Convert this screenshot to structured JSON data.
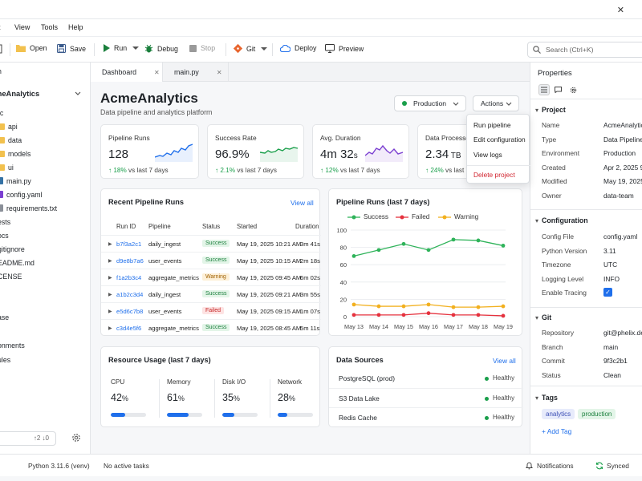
{
  "menu": {
    "items": [
      "t",
      "View",
      "Tools",
      "Help"
    ]
  },
  "window": {
    "close_glyph": "✕"
  },
  "toolbar": {
    "open_label": "Open",
    "save_label": "Save",
    "run_label": "Run",
    "debug_label": "Debug",
    "stop_label": "Stop",
    "git_label": "Git",
    "deploy_label": "Deploy",
    "preview_label": "Preview",
    "search_placeholder": "Search (Ctrl+K)"
  },
  "sidebar": {
    "header": "n",
    "project": "meAnalytics",
    "items": [
      {
        "label": "rc",
        "icon": "none"
      },
      {
        "label": "api",
        "icon": "folder"
      },
      {
        "label": "data",
        "icon": "folder"
      },
      {
        "label": "models",
        "icon": "folder"
      },
      {
        "label": "ui",
        "icon": "folder"
      },
      {
        "label": "main.py",
        "icon": "python"
      },
      {
        "label": "config.yaml",
        "icon": "yaml"
      },
      {
        "label": "requirements.txt",
        "icon": "text"
      },
      {
        "label": "ests",
        "icon": "none"
      },
      {
        "label": "ocs",
        "icon": "none"
      },
      {
        "label": "gitignore",
        "icon": "none"
      },
      {
        "label": "EADME.md",
        "icon": "none"
      },
      {
        "label": "CENSE",
        "icon": "none"
      }
    ],
    "section_items": [
      "ase",
      "onments",
      "ules"
    ],
    "git_status": "↑2 ↓0"
  },
  "tabs": [
    {
      "label": "Dashboard",
      "icon": "home-icon",
      "active": true
    },
    {
      "label": "main.py",
      "icon": "python-icon",
      "active": false
    }
  ],
  "page": {
    "title": "AcmeAnalytics",
    "subtitle": "Data pipeline and analytics platform"
  },
  "env_select": {
    "value": "Production",
    "status_color": "#1a9f4b"
  },
  "actions": {
    "label": "Actions"
  },
  "dropdown": {
    "items": [
      "Run pipeline",
      "Edit configuration",
      "View logs"
    ],
    "danger_item": "Delete project"
  },
  "kpis": [
    {
      "label": "Pipeline Runs",
      "value": "128",
      "unit": "",
      "delta": "↑ 18%",
      "delta_text": "vs last 7 days",
      "color": "#1f6feb"
    },
    {
      "label": "Success Rate",
      "value": "96.9%",
      "unit": "",
      "delta": "↑ 2.1%",
      "delta_text": "vs last 7 days",
      "color": "#1a9f4b"
    },
    {
      "label": "Avg. Duration",
      "value": "4m 32",
      "unit": "s",
      "delta": "↑ 12%",
      "delta_text": "vs last 7 days",
      "color": "#7b3fd1"
    },
    {
      "label": "Data Processed",
      "value": "2.34",
      "unit": " TB",
      "delta": "↑ 24%",
      "delta_text": "vs last 7",
      "color": "#1f6feb"
    }
  ],
  "runs": {
    "title": "Recent Pipeline Runs",
    "view_all": "View all",
    "columns": [
      "Run ID",
      "Pipeline",
      "Status",
      "Started",
      "Duration"
    ],
    "rows": [
      {
        "id": "b7f3a2c1",
        "pipeline": "daily_ingest",
        "status": "Success",
        "started": "May 19, 2025 10:21 AM",
        "duration": "3m 41s"
      },
      {
        "id": "d9e8b7a6",
        "pipeline": "user_events",
        "status": "Success",
        "started": "May 19, 2025 10:15 AM",
        "duration": "2m 18s"
      },
      {
        "id": "f1a2b3c4",
        "pipeline": "aggregate_metrics",
        "status": "Warning",
        "started": "May 19, 2025 09:45 AM",
        "duration": "6m 02s"
      },
      {
        "id": "a1b2c3d4",
        "pipeline": "daily_ingest",
        "status": "Success",
        "started": "May 19, 2025 09:21 AM",
        "duration": "3m 55s"
      },
      {
        "id": "e5d6c7b8",
        "pipeline": "user_events",
        "status": "Failed",
        "started": "May 19, 2025 09:15 AM",
        "duration": "1m 07s"
      },
      {
        "id": "c3d4e5f6",
        "pipeline": "aggregate_metrics",
        "status": "Success",
        "started": "May 19, 2025 08:45 AM",
        "duration": "5m 11s"
      }
    ]
  },
  "chart_data": {
    "type": "line",
    "title": "Pipeline Runs (last 7 days)",
    "categories": [
      "May 13",
      "May 14",
      "May 15",
      "May 16",
      "May 17",
      "May 18",
      "May 19"
    ],
    "ylim": [
      0,
      100
    ],
    "yticks": [
      0,
      20,
      40,
      60,
      80,
      100
    ],
    "grid": true,
    "legend": "top",
    "series": [
      {
        "name": "Success",
        "color": "#2fb35a",
        "values": [
          70,
          77,
          84,
          77,
          89,
          88,
          82
        ]
      },
      {
        "name": "Failed",
        "color": "#e5323e",
        "values": [
          2,
          2,
          2,
          4,
          2,
          2,
          1
        ]
      },
      {
        "name": "Warning",
        "color": "#f2b01e",
        "values": [
          14,
          12,
          12,
          14,
          11,
          11,
          12
        ]
      }
    ]
  },
  "resource": {
    "title": "Resource Usage (last 7 days)",
    "items": [
      {
        "label": "CPU",
        "value": "42",
        "unit": "%",
        "fraction": 0.42
      },
      {
        "label": "Memory",
        "value": "61",
        "unit": "%",
        "fraction": 0.61
      },
      {
        "label": "Disk I/O",
        "value": "35",
        "unit": "%",
        "fraction": 0.35
      },
      {
        "label": "Network",
        "value": "28",
        "unit": "%",
        "fraction": 0.28
      }
    ]
  },
  "sources": {
    "title": "Data Sources",
    "view_all": "View all",
    "rows": [
      {
        "name": "PostgreSQL (prod)",
        "status": "Healthy"
      },
      {
        "name": "S3 Data Lake",
        "status": "Healthy"
      },
      {
        "name": "Redis Cache",
        "status": "Healthy"
      }
    ]
  },
  "properties": {
    "header": "Properties",
    "project_title": "Project",
    "project": [
      {
        "k": "Name",
        "v": "AcmeAnalytics"
      },
      {
        "k": "Type",
        "v": "Data Pipeline"
      },
      {
        "k": "Environment",
        "v": "Production"
      },
      {
        "k": "Created",
        "v": "Apr 2, 2025 9"
      },
      {
        "k": "Modified",
        "v": "May 19, 2025 1"
      },
      {
        "k": "Owner",
        "v": "data-team"
      }
    ],
    "config_title": "Configuration",
    "config": [
      {
        "k": "Config File",
        "v": "config.yaml"
      },
      {
        "k": "Python Version",
        "v": "3.11"
      },
      {
        "k": "Timezone",
        "v": "UTC"
      },
      {
        "k": "Logging Level",
        "v": "INFO"
      },
      {
        "k": "Enable Tracing",
        "v": "✓"
      }
    ],
    "git_title": "Git",
    "git": [
      {
        "k": "Repository",
        "v": "git@phelix.de"
      },
      {
        "k": "Branch",
        "v": "main"
      },
      {
        "k": "Commit",
        "v": "9f3c2b1"
      },
      {
        "k": "Status",
        "v": "Clean"
      }
    ],
    "tags_title": "Tags",
    "tags": [
      "analytics",
      "production"
    ],
    "add_tag": "+ Add Tag"
  },
  "statusbar": {
    "python": "Python 3.11.6 (venv)",
    "tasks": "No active tasks",
    "notifications": "Notifications",
    "synced": "Synced"
  }
}
